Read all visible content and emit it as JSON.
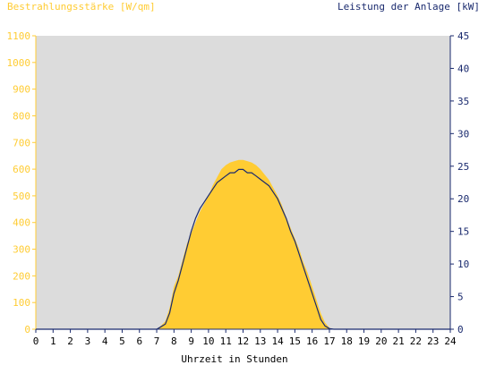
{
  "chart_data": {
    "type": "area",
    "title_left": "Bestrahlungsstärke [W/qm]",
    "title_right": "Leistung der Anlage [kW]",
    "xlabel": "Uhrzeit in Stunden",
    "xlim": [
      0,
      24
    ],
    "x_ticks": [
      "0",
      "1",
      "2",
      "3",
      "4",
      "5",
      "6",
      "7",
      "8",
      "9",
      "10",
      "11",
      "12",
      "13",
      "14",
      "15",
      "16",
      "17",
      "18",
      "19",
      "20",
      "21",
      "22",
      "23",
      "24"
    ],
    "y_left_lim": [
      0,
      1100
    ],
    "y_left_ticks": [
      "0",
      "100",
      "200",
      "300",
      "400",
      "500",
      "600",
      "700",
      "800",
      "900",
      "1000",
      "1100"
    ],
    "y_right_lim": [
      0,
      45
    ],
    "y_right_ticks": [
      "0",
      "5",
      "10",
      "15",
      "20",
      "25",
      "30",
      "35",
      "40",
      "45"
    ],
    "grid": false,
    "series": [
      {
        "name": "Bestrahlungsstärke",
        "axis": "left",
        "style": "filled-area",
        "x": [
          0,
          7.0,
          7.2,
          7.5,
          7.75,
          8.0,
          8.25,
          8.5,
          8.75,
          9.0,
          9.25,
          9.5,
          9.75,
          10.0,
          10.25,
          10.5,
          10.75,
          11.0,
          11.25,
          11.5,
          11.75,
          12.0,
          12.25,
          12.5,
          12.75,
          13.0,
          13.25,
          13.5,
          13.75,
          14.0,
          14.25,
          14.5,
          14.75,
          15.0,
          15.25,
          15.5,
          15.75,
          16.0,
          16.25,
          16.5,
          16.75,
          17.0,
          17.25,
          24
        ],
        "values": [
          0,
          0,
          10,
          30,
          80,
          160,
          200,
          260,
          320,
          360,
          400,
          440,
          470,
          500,
          540,
          570,
          600,
          615,
          625,
          630,
          635,
          635,
          630,
          625,
          615,
          600,
          580,
          560,
          530,
          500,
          465,
          420,
          380,
          340,
          300,
          250,
          210,
          160,
          110,
          60,
          25,
          5,
          0,
          0
        ],
        "color": "#ffcc33"
      },
      {
        "name": "Leistung der Anlage",
        "axis": "right",
        "style": "line",
        "x": [
          0,
          7.0,
          7.2,
          7.5,
          7.75,
          8.0,
          8.25,
          8.5,
          8.75,
          9.0,
          9.25,
          9.5,
          9.75,
          10.0,
          10.25,
          10.5,
          10.75,
          11.0,
          11.25,
          11.5,
          11.75,
          12.0,
          12.25,
          12.5,
          12.75,
          13.0,
          13.25,
          13.5,
          13.75,
          14.0,
          14.25,
          14.5,
          14.75,
          15.0,
          15.25,
          15.5,
          15.75,
          16.0,
          16.25,
          16.5,
          16.75,
          17.0,
          17.25,
          24
        ],
        "values": [
          0,
          0,
          0.3,
          0.8,
          2.5,
          5.5,
          7.5,
          10.0,
          12.5,
          15.0,
          17.0,
          18.5,
          19.5,
          20.5,
          21.5,
          22.5,
          23.0,
          23.5,
          24.0,
          24.0,
          24.5,
          24.5,
          24.0,
          24.0,
          23.5,
          23.0,
          22.5,
          22.0,
          21.0,
          20.0,
          18.5,
          17.0,
          15.0,
          13.5,
          11.5,
          9.5,
          7.5,
          5.5,
          3.5,
          1.5,
          0.5,
          0.1,
          0,
          0
        ],
        "color": "#1a2a6e"
      }
    ]
  },
  "colors": {
    "plot_background": "#dcdcdc",
    "left_axis": "#ffcc33",
    "right_axis": "#1a2a6e",
    "area_fill": "#ffcc33",
    "power_line": "#1a2a6e"
  }
}
